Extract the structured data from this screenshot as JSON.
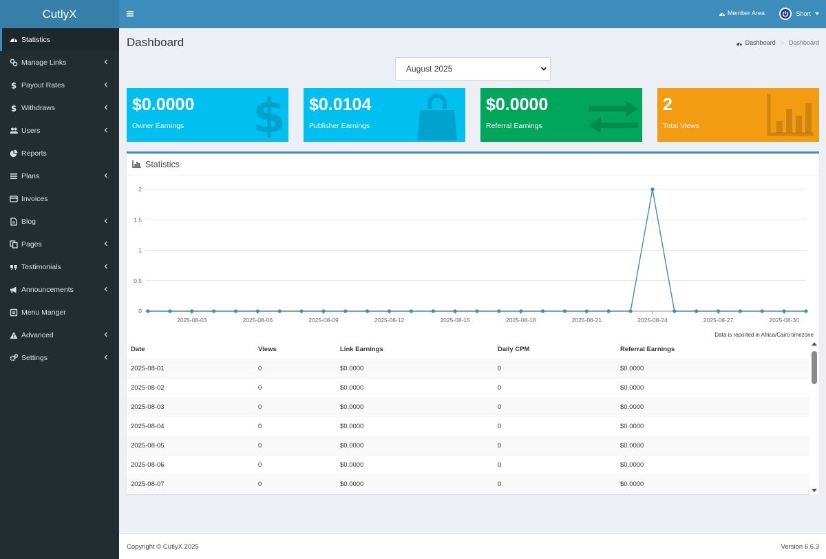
{
  "app": {
    "logo": "CutlyX"
  },
  "sidebar": {
    "items": [
      {
        "label": "Statistics",
        "icon": "dashboard-icon",
        "active": true,
        "chevron": false
      },
      {
        "label": "Manage Links",
        "icon": "link-icon",
        "chevron": true
      },
      {
        "label": "Payout Rates",
        "icon": "dollar-icon",
        "chevron": true
      },
      {
        "label": "Withdraws",
        "icon": "dollar-icon",
        "chevron": true
      },
      {
        "label": "Users",
        "icon": "users-icon",
        "chevron": true
      },
      {
        "label": "Reports",
        "icon": "pie-chart-icon",
        "chevron": false
      },
      {
        "label": "Plans",
        "icon": "list-icon",
        "chevron": true
      },
      {
        "label": "Invoices",
        "icon": "credit-card-icon",
        "chevron": false
      },
      {
        "label": "Blog",
        "icon": "file-icon",
        "chevron": true
      },
      {
        "label": "Pages",
        "icon": "copy-icon",
        "chevron": true
      },
      {
        "label": "Testimonials",
        "icon": "quote-icon",
        "chevron": true
      },
      {
        "label": "Announcements",
        "icon": "bullhorn-icon",
        "chevron": true
      },
      {
        "label": "Menu Manger",
        "icon": "menu-square-icon",
        "chevron": false
      },
      {
        "label": "Advanced",
        "icon": "warning-icon",
        "chevron": true
      },
      {
        "label": "Settings",
        "icon": "cogs-icon",
        "chevron": true
      }
    ]
  },
  "header": {
    "member_area": "Member Area",
    "user_name": "Short"
  },
  "page": {
    "title": "Dashboard",
    "breadcrumb": {
      "home": "Dashboard",
      "current": "Dashboard"
    },
    "month_select": "August 2025"
  },
  "stats": [
    {
      "value": "$0.0000",
      "label": "Owner Earnings",
      "color": "#00c0ef",
      "icon": "dollar-icon"
    },
    {
      "value": "$0.0104",
      "label": "Publisher Earnings",
      "color": "#00c0ef",
      "icon": "shopping-bag-icon"
    },
    {
      "value": "$0.0000",
      "label": "Referral Earnings",
      "color": "#00a65a",
      "icon": "exchange-icon"
    },
    {
      "value": "2",
      "label": "Total Views",
      "color": "#f39c12",
      "icon": "bar-chart-icon"
    }
  ],
  "panel": {
    "title": "Statistics",
    "timezone_note": "Data is reported in Africa/Cairo timezone",
    "table": {
      "headers": [
        "Date",
        "Views",
        "Link Earnings",
        "Daily CPM",
        "Referral Earnings"
      ],
      "rows": [
        [
          "2025-08-01",
          "0",
          "$0.0000",
          "0",
          "$0.0000"
        ],
        [
          "2025-08-02",
          "0",
          "$0.0000",
          "0",
          "$0.0000"
        ],
        [
          "2025-08-03",
          "0",
          "$0.0000",
          "0",
          "$0.0000"
        ],
        [
          "2025-08-04",
          "0",
          "$0.0000",
          "0",
          "$0.0000"
        ],
        [
          "2025-08-05",
          "0",
          "$0.0000",
          "0",
          "$0.0000"
        ],
        [
          "2025-08-06",
          "0",
          "$0.0000",
          "0",
          "$0.0000"
        ],
        [
          "2025-08-07",
          "0",
          "$0.0000",
          "0",
          "$0.0000"
        ]
      ]
    }
  },
  "chart_data": {
    "type": "line",
    "x": [
      "2025-08-01",
      "2025-08-02",
      "2025-08-03",
      "2025-08-04",
      "2025-08-05",
      "2025-08-06",
      "2025-08-07",
      "2025-08-08",
      "2025-08-09",
      "2025-08-10",
      "2025-08-11",
      "2025-08-12",
      "2025-08-13",
      "2025-08-14",
      "2025-08-15",
      "2025-08-16",
      "2025-08-17",
      "2025-08-18",
      "2025-08-19",
      "2025-08-20",
      "2025-08-21",
      "2025-08-22",
      "2025-08-23",
      "2025-08-24",
      "2025-08-25",
      "2025-08-26",
      "2025-08-27",
      "2025-08-28",
      "2025-08-29",
      "2025-08-30",
      "2025-08-31"
    ],
    "x_tick_labels": [
      "2025-08-03",
      "2025-08-06",
      "2025-08-09",
      "2025-08-12",
      "2025-08-15",
      "2025-08-18",
      "2025-08-21",
      "2025-08-24",
      "2025-08-27",
      "2025-08-30"
    ],
    "y_tick_labels": [
      "0",
      "0.5",
      "1",
      "1.5",
      "2"
    ],
    "series": [
      {
        "values": [
          0,
          0,
          0,
          0,
          0,
          0,
          0,
          0,
          0,
          0,
          0,
          0,
          0,
          0,
          0,
          0,
          0,
          0,
          0,
          0,
          0,
          0,
          0,
          2,
          0,
          0,
          0,
          0,
          0,
          0,
          0
        ]
      }
    ],
    "ylim": [
      0,
      2
    ],
    "grid": true,
    "color": "#3c8dbc"
  },
  "footer": {
    "copyright": "Copyright © CutlyX 2025",
    "version": "Version 6.6.3"
  }
}
